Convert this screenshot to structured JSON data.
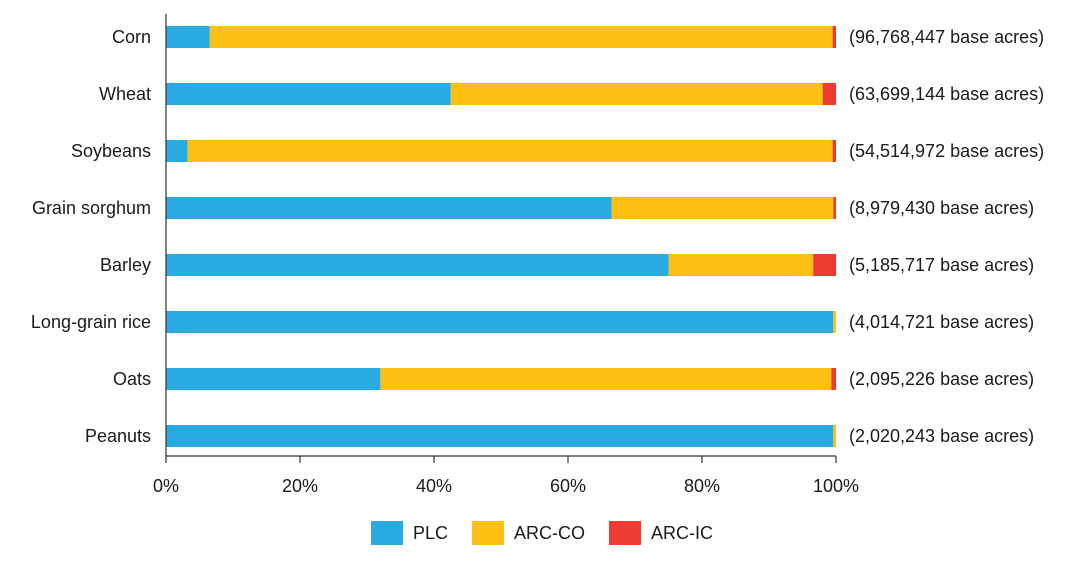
{
  "chart_data": {
    "type": "bar",
    "orientation": "horizontal",
    "stacked": true,
    "categories": [
      "Corn",
      "Wheat",
      "Soybeans",
      "Grain sorghum",
      "Barley",
      "Long-grain rice",
      "Oats",
      "Peanuts"
    ],
    "annotations": [
      "(96,768,447 base acres)",
      "(63,699,144 base acres)",
      "(54,514,972 base acres)",
      "(8,979,430 base acres)",
      "(5,185,717 base acres)",
      "(4,014,721 base acres)",
      "(2,095,226 base acres)",
      "(2,020,243 base acres)"
    ],
    "series": [
      {
        "name": "PLC",
        "color": "#29abe2",
        "values": [
          6.5,
          42.5,
          3.2,
          66.5,
          75.0,
          99.6,
          32.0,
          99.6
        ]
      },
      {
        "name": "ARC-CO",
        "color": "#fcc012",
        "values": [
          93.0,
          55.5,
          96.3,
          33.1,
          21.6,
          0.4,
          67.3,
          0.4
        ]
      },
      {
        "name": "ARC-IC",
        "color": "#ee3b34",
        "values": [
          0.5,
          2.0,
          0.5,
          0.4,
          3.4,
          0.0,
          0.7,
          0.0
        ]
      }
    ],
    "xlim": [
      0,
      100
    ],
    "x_ticks": [
      "0%",
      "20%",
      "40%",
      "60%",
      "80%",
      "100%"
    ],
    "title": "",
    "xlabel": "",
    "ylabel": "",
    "grid": false,
    "legend_position": "bottom"
  }
}
